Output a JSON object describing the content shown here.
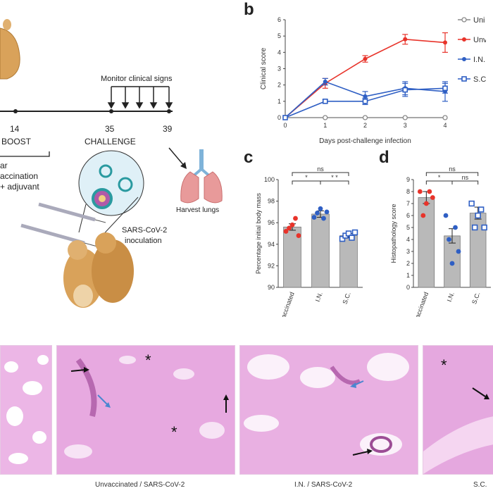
{
  "panel_a": {
    "timeline": [
      {
        "day": "14",
        "label": "BOOST"
      },
      {
        "day": "35",
        "label": "CHALLENGE"
      },
      {
        "day": "39",
        "label": ""
      }
    ],
    "monitor_text": "Monitor clinical signs",
    "harvest_text": "Harvest lungs",
    "vaccination_lines": [
      "ar",
      "accination",
      "+ adjuvant"
    ],
    "inoculation_lines": [
      "SARS-CoV-2",
      "inoculation"
    ]
  },
  "panel_b": {
    "letter": "b",
    "legend": [
      "Uni",
      "Unv",
      "I.N.",
      "S.C."
    ]
  },
  "panel_c": {
    "letter": "c",
    "sig_labels": [
      "ns",
      "*",
      "* *"
    ]
  },
  "panel_d": {
    "letter": "d",
    "sig_labels": [
      "ns",
      "*",
      "ns"
    ]
  },
  "micrographs": {
    "captions": [
      "Unvaccinated / SARS-CoV-2",
      "I.N. / SARS-CoV-2",
      "S.C."
    ]
  },
  "colors": {
    "red": "#e8332a",
    "blue": "#2f5fc4",
    "grey": "#8a8a8a",
    "bar": "#b9b9b9",
    "tissue": "#e9b3e4"
  },
  "chart_data": [
    {
      "type": "line",
      "xlabel": "Days post-challenge infection",
      "ylabel": "Clinical score",
      "x": [
        0,
        1,
        2,
        3,
        4
      ],
      "xlim": [
        0,
        4
      ],
      "ylim": [
        0,
        6
      ],
      "yticks": [
        0,
        1,
        2,
        3,
        4,
        5,
        6
      ],
      "series": [
        {
          "name": "Uni",
          "values": [
            0,
            0,
            0,
            0,
            0
          ],
          "err": [
            0,
            0,
            0,
            0,
            0
          ],
          "color": "#8a8a8a",
          "marker": "circle-open"
        },
        {
          "name": "Unv",
          "values": [
            0,
            2.1,
            3.6,
            4.8,
            4.6
          ],
          "err": [
            0,
            0.3,
            0.2,
            0.3,
            0.6
          ],
          "color": "#e8332a",
          "marker": "circle"
        },
        {
          "name": "I.N.",
          "values": [
            0,
            2.2,
            1.3,
            1.8,
            1.6
          ],
          "err": [
            0,
            0.2,
            0.3,
            0.4,
            0.6
          ],
          "color": "#2f5fc4",
          "marker": "circle"
        },
        {
          "name": "S.C.",
          "values": [
            0,
            1.0,
            1.0,
            1.7,
            1.8
          ],
          "err": [
            0,
            0.1,
            0.2,
            0.4,
            0.3
          ],
          "color": "#2f5fc4",
          "marker": "square-open"
        }
      ]
    },
    {
      "type": "bar",
      "ylabel": "Percentage initial body mass",
      "categories": [
        "Unvaccinated",
        "I.N.",
        "S.C."
      ],
      "values": [
        95.6,
        96.8,
        94.8
      ],
      "err": [
        0.3,
        0.3,
        0.2
      ],
      "ylim": [
        90,
        100
      ],
      "yticks": [
        90,
        92,
        94,
        96,
        98,
        100
      ],
      "points": [
        [
          95.2,
          95.5,
          95.8,
          96.4,
          94.8
        ],
        [
          96.5,
          96.9,
          97.3,
          96.4,
          97.0
        ],
        [
          94.5,
          94.8,
          95.0,
          94.6,
          95.1
        ]
      ],
      "point_colors": [
        "#e8332a",
        "#2f5fc4",
        "#2f5fc4"
      ],
      "point_markers": [
        "circle",
        "circle",
        "square-open"
      ]
    },
    {
      "type": "bar",
      "ylabel": "Histopathology score",
      "categories": [
        "Unvaccinated",
        "I.N.",
        "S.C."
      ],
      "values": [
        7.5,
        4.3,
        6.2
      ],
      "err": [
        0.5,
        0.6,
        0.5
      ],
      "ylim": [
        0,
        9
      ],
      "yticks": [
        0,
        1,
        2,
        3,
        4,
        5,
        6,
        7,
        8,
        9
      ],
      "points": [
        [
          8.0,
          6.0,
          7.0,
          8.0,
          7.5
        ],
        [
          6.0,
          4.0,
          2.0,
          5.0,
          3.0
        ],
        [
          7.0,
          5.0,
          6.0,
          6.5,
          5.0
        ]
      ],
      "point_colors": [
        "#e8332a",
        "#2f5fc4",
        "#2f5fc4"
      ],
      "point_markers": [
        "circle",
        "circle",
        "square-open"
      ]
    }
  ]
}
